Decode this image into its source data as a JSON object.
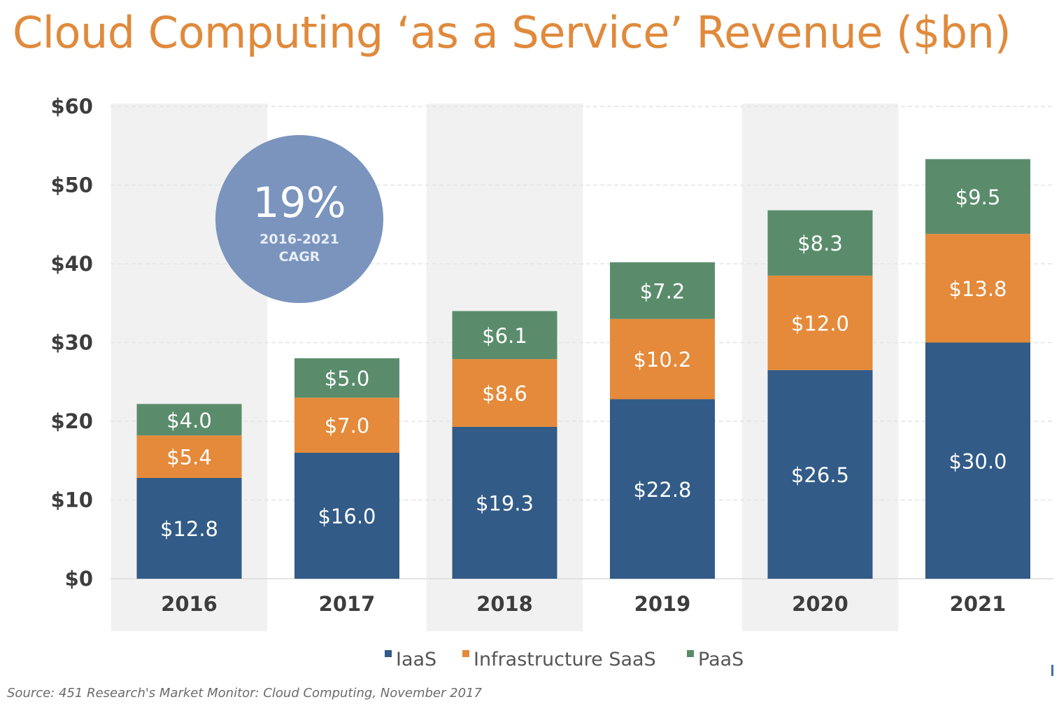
{
  "title": "Cloud Computing ‘as a Service’ Revenue ($bn)",
  "source": "Source: 451 Research's Market Monitor: Cloud Computing, November 2017",
  "callout": {
    "value": "19%",
    "line1": "2016-2021",
    "line2": "CAGR"
  },
  "colors": {
    "title": "#e08a3c",
    "iaas": "#325b87",
    "saas": "#e48a3a",
    "paas": "#5a8c6c",
    "callout": "#7a94bd",
    "band": "#f1f1f1",
    "axis_text": "#3d3d3d"
  },
  "chart_data": {
    "type": "bar",
    "stacked": true,
    "categories": [
      "2016",
      "2017",
      "2018",
      "2019",
      "2020",
      "2021"
    ],
    "series": [
      {
        "name": "IaaS",
        "values": [
          12.8,
          16.0,
          19.3,
          22.8,
          26.5,
          30.0
        ],
        "labels": [
          "$12.8",
          "$16.0",
          "$19.3",
          "$22.8",
          "$26.5",
          "$30.0"
        ],
        "color": "#325b87"
      },
      {
        "name": "Infrastructure SaaS",
        "values": [
          5.4,
          7.0,
          8.6,
          10.2,
          12.0,
          13.8
        ],
        "labels": [
          "$5.4",
          "$7.0",
          "$8.6",
          "$10.2",
          "$12.0",
          "$13.8"
        ],
        "color": "#e48a3a"
      },
      {
        "name": "PaaS",
        "values": [
          4.0,
          5.0,
          6.1,
          7.2,
          8.3,
          9.5
        ],
        "labels": [
          "$4.0",
          "$5.0",
          "$6.1",
          "$7.2",
          "$8.3",
          "$9.5"
        ],
        "color": "#5a8c6c"
      }
    ],
    "ylim": [
      0,
      60
    ],
    "yticks": [
      0,
      10,
      20,
      30,
      40,
      50,
      60
    ],
    "ytick_labels": [
      "$0",
      "$10",
      "$20",
      "$30",
      "$40",
      "$50",
      "$60"
    ],
    "grid": true,
    "legend_position": "bottom-center"
  }
}
